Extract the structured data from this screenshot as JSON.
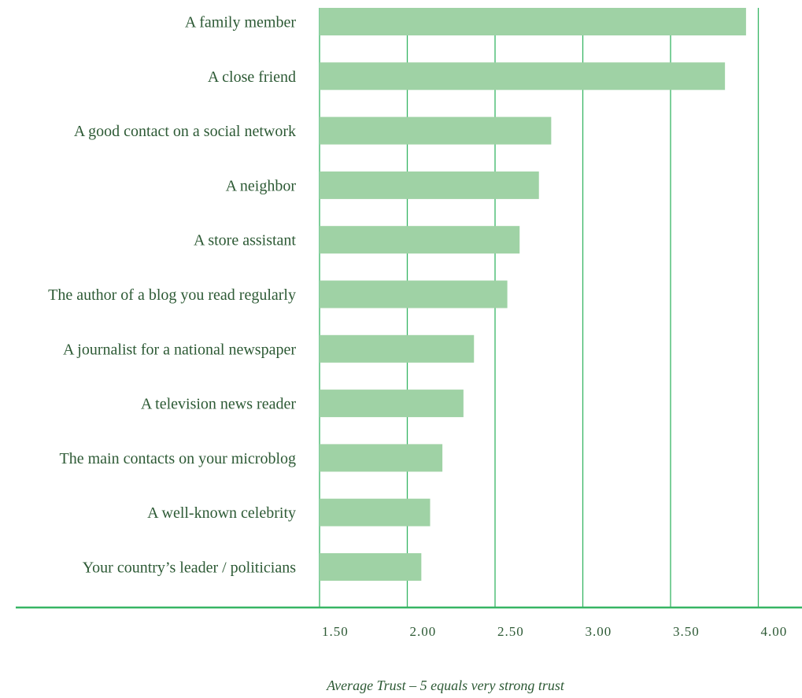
{
  "colors": {
    "bar": "#9fd2a5",
    "line": "#37b563",
    "text": "#2d5a35"
  },
  "chart_data": {
    "type": "bar",
    "orientation": "horizontal",
    "categories": [
      "A  family member",
      "A close friend",
      "A good contact on a social network",
      "A neighbor",
      "A store assistant",
      "The author of a blog you read regularly",
      "A journalist for a national newspaper",
      "A television news reader",
      "The main contacts on your microblog",
      "A well-known celebrity",
      "Your country’s leader / politicians"
    ],
    "values": [
      3.93,
      3.81,
      2.82,
      2.75,
      2.64,
      2.57,
      2.38,
      2.32,
      2.2,
      2.13,
      2.08
    ],
    "xlim": [
      1.5,
      4.5
    ],
    "x_ticks": [
      1.5,
      2.0,
      2.5,
      3.0,
      3.5,
      4.0
    ],
    "x_tick_labels": [
      "1.50",
      "2.00",
      "2.50",
      "3.00",
      "3.50",
      "4.00"
    ],
    "xlabel": "Average Trust – 5 equals very strong trust",
    "ylabel": "",
    "title": "",
    "grid": "vertical",
    "legend": "none"
  }
}
